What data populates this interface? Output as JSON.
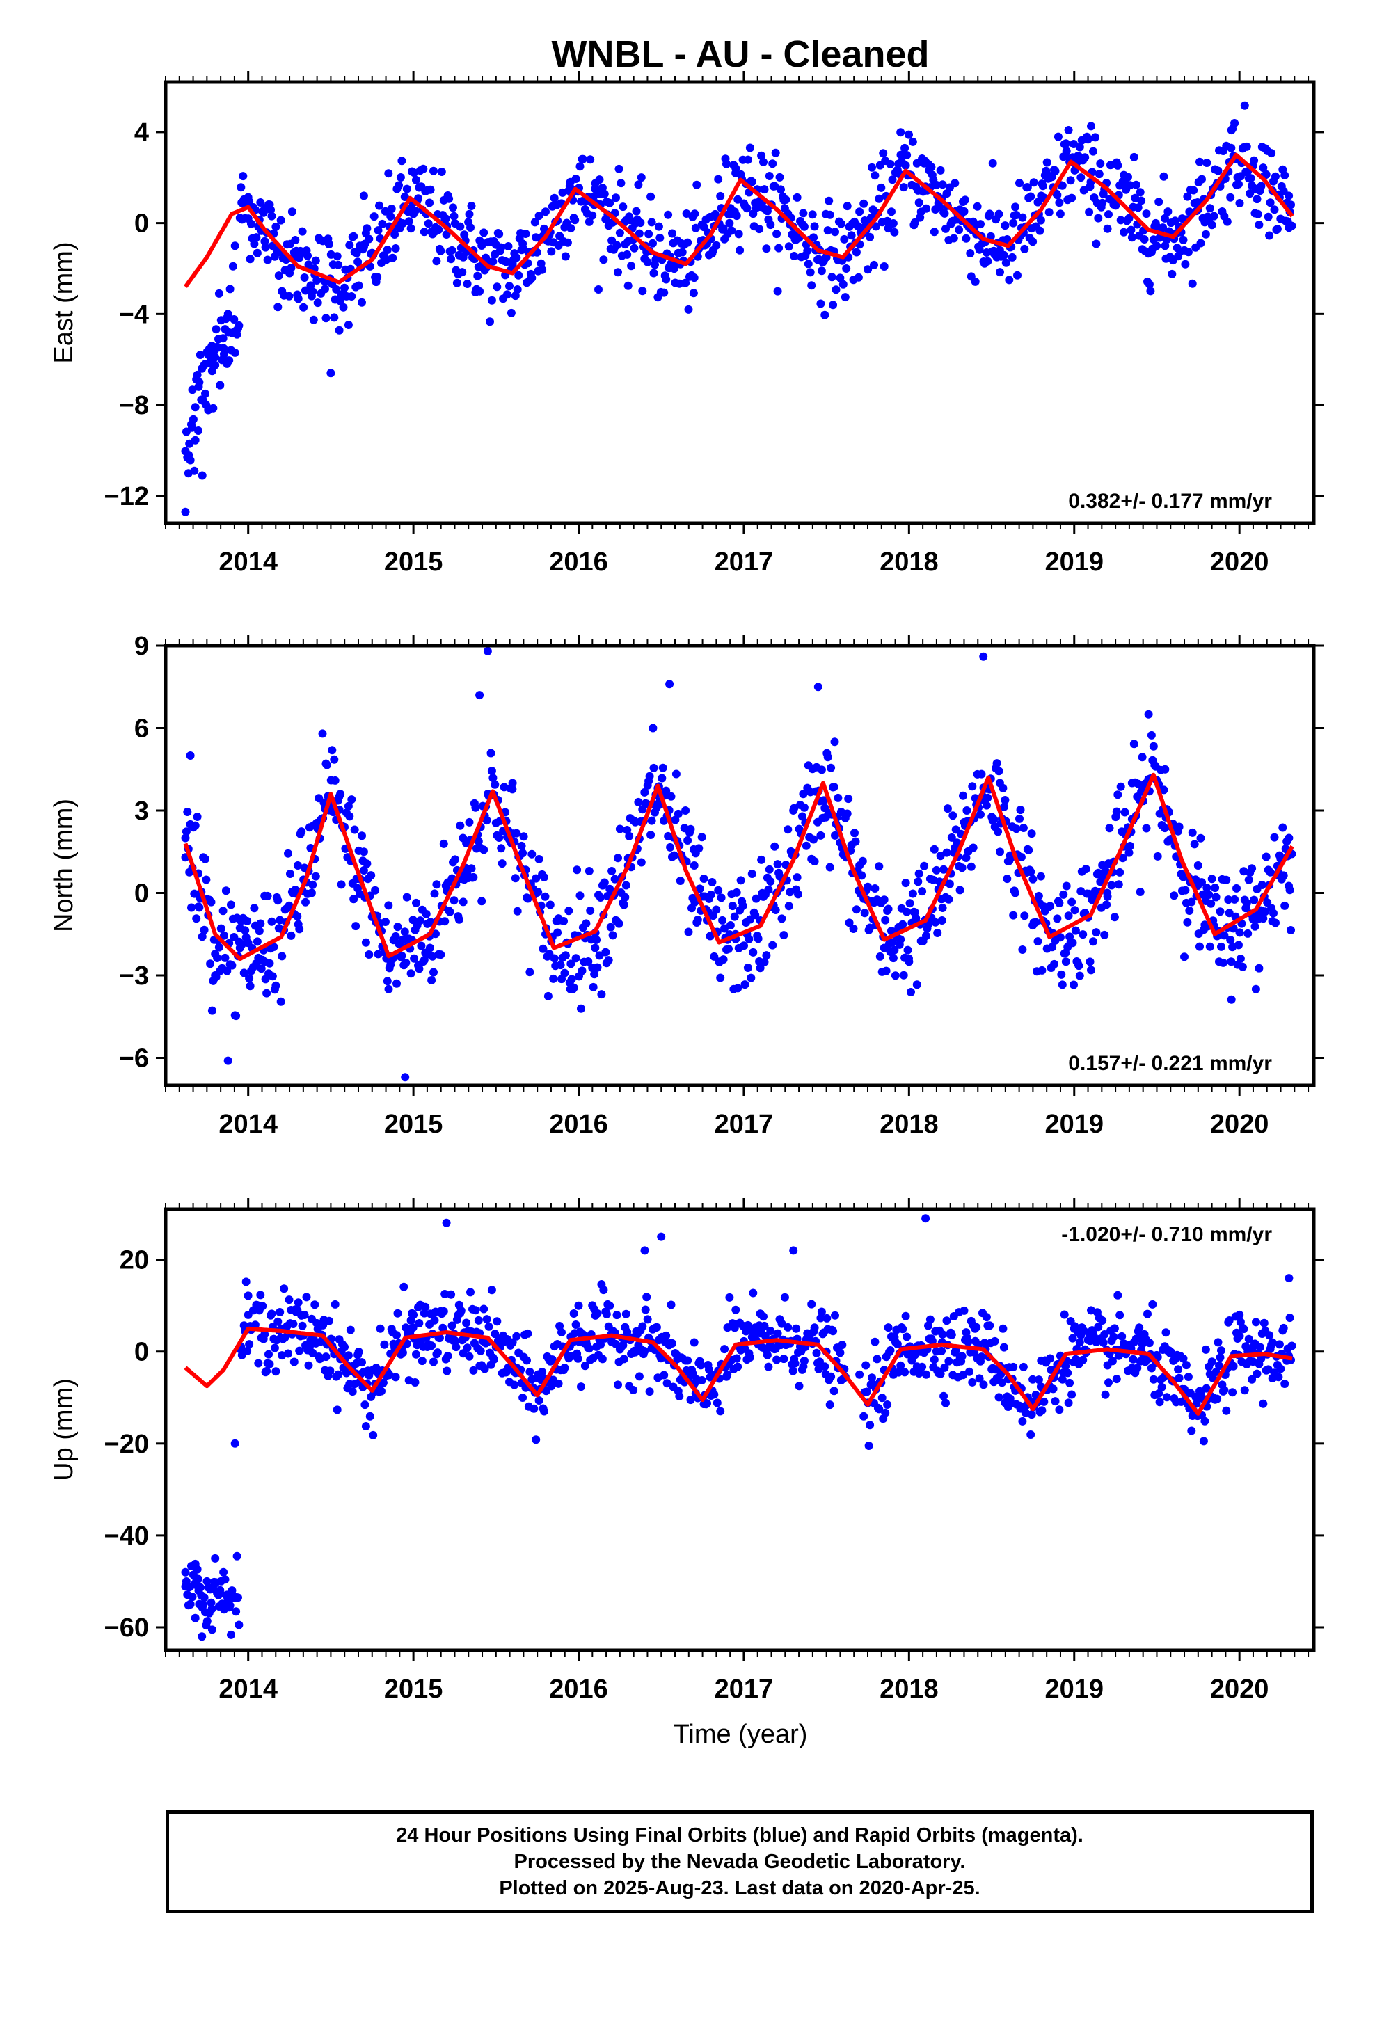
{
  "figure": {
    "title": "WNBL  - AU - Cleaned",
    "xlabel": "Time (year)",
    "footer": [
      "24 Hour Positions Using Final Orbits (blue) and Rapid Orbits (magenta).",
      "Processed by the Nevada Geodetic Laboratory.",
      "Plotted on 2025-Aug-23. Last data on 2020-Apr-25."
    ]
  },
  "colors": {
    "points": "#0000ff",
    "model": "#ff0000",
    "axes": "#000000"
  },
  "chart_data": [
    {
      "type": "scatter",
      "component": "east",
      "ylabel": "East (mm)",
      "rate_text": "0.382+/- 0.177 mm/yr",
      "rate_position": "bottom-right",
      "xlim": [
        2013.5,
        2020.45
      ],
      "ylim": [
        -13.2,
        6.2
      ],
      "yticks": [
        4,
        0,
        -4,
        -8,
        -12
      ],
      "xticks": [
        2014,
        2015,
        2016,
        2017,
        2018,
        2019,
        2020
      ],
      "grid": false,
      "series": [
        {
          "type": "scatter",
          "x": [
            2013.62,
            2013.64,
            2013.66,
            2013.68,
            2013.7,
            2013.72,
            2013.74,
            2013.76,
            2013.78,
            2013.8,
            2013.82,
            2013.85,
            2013.88,
            2013.92,
            2013.96,
            2014.0,
            2014.1,
            2014.25,
            2014.4,
            2014.5,
            2014.7,
            2014.9,
            2015.0,
            2015.2,
            2015.4,
            2015.6,
            2015.8,
            2015.95,
            2016.1,
            2016.3,
            2016.55,
            2016.7,
            2016.95,
            2017.1,
            2017.3,
            2017.5,
            2017.7,
            2017.95,
            2018.1,
            2018.3,
            2018.55,
            2018.8,
            2018.95,
            2019.1,
            2019.3,
            2019.55,
            2019.75,
            2019.95,
            2020.1,
            2020.3
          ],
          "y": [
            -12.7,
            -10.2,
            -9.0,
            -8.1,
            -7.2,
            -6.4,
            -6.2,
            -5.8,
            -5.4,
            -5.9,
            -5.1,
            -5.5,
            -4.8,
            -1.0,
            0.9,
            0.2,
            -0.8,
            -2.2,
            -2.0,
            -6.6,
            1.2,
            1.5,
            0.4,
            -0.5,
            -3.0,
            -1.8,
            0.5,
            1.8,
            1.5,
            -0.8,
            -1.9,
            -2.4,
            2.2,
            1.0,
            -0.5,
            -1.5,
            0.5,
            3.0,
            1.6,
            0.2,
            -1.2,
            1.2,
            3.5,
            1.8,
            -0.4,
            -1.0,
            0.6,
            3.3,
            1.5,
            -0.2
          ]
        },
        {
          "type": "line",
          "name": "",
          "x": [
            2013.62,
            2013.75,
            2013.9,
            2014.0,
            2014.1,
            2014.3,
            2014.55,
            2014.75,
            2014.98,
            2015.2,
            2015.45,
            2015.6,
            2015.8,
            2015.98,
            2016.2,
            2016.45,
            2016.65,
            2016.8,
            2016.98,
            2017.2,
            2017.45,
            2017.6,
            2017.8,
            2017.98,
            2018.2,
            2018.45,
            2018.6,
            2018.8,
            2018.98,
            2019.2,
            2019.45,
            2019.6,
            2019.8,
            2019.98,
            2020.15,
            2020.32
          ],
          "y": [
            -2.8,
            -1.5,
            0.4,
            0.7,
            -0.3,
            -1.9,
            -2.6,
            -1.6,
            1.1,
            -0.2,
            -1.9,
            -2.2,
            -0.6,
            1.5,
            0.3,
            -1.3,
            -1.8,
            -0.5,
            1.9,
            0.6,
            -1.2,
            -1.5,
            0.2,
            2.3,
            1.0,
            -0.7,
            -1.0,
            0.6,
            2.7,
            1.5,
            -0.3,
            -0.6,
            1.0,
            3.0,
            1.9,
            0.3
          ]
        }
      ]
    },
    {
      "type": "scatter",
      "component": "north",
      "ylabel": "North (mm)",
      "rate_text": "0.157+/- 0.221 mm/yr",
      "rate_position": "bottom-right",
      "xlim": [
        2013.5,
        2020.45
      ],
      "ylim": [
        -7.0,
        9.0
      ],
      "yticks": [
        9,
        6,
        3,
        0,
        -3,
        -6
      ],
      "xticks": [
        2014,
        2015,
        2016,
        2017,
        2018,
        2019,
        2020
      ],
      "grid": false,
      "series": [
        {
          "type": "scatter",
          "x": [
            2013.62,
            2013.65,
            2013.7,
            2013.8,
            2013.95,
            2014.1,
            2014.3,
            2014.45,
            2014.55,
            2014.7,
            2014.85,
            2014.95,
            2015.1,
            2015.3,
            2015.4,
            2015.45,
            2015.6,
            2015.8,
            2015.95,
            2016.1,
            2016.3,
            2016.45,
            2016.55,
            2016.7,
            2016.85,
            2016.95,
            2017.1,
            2017.3,
            2017.45,
            2017.55,
            2017.7,
            2017.85,
            2018.0,
            2018.2,
            2018.35,
            2018.45,
            2018.55,
            2018.75,
            2018.95,
            2019.2,
            2019.35,
            2019.45,
            2019.55,
            2019.75,
            2019.95,
            2020.1,
            2020.3
          ],
          "y": [
            2.0,
            5.0,
            -0.5,
            -3.0,
            -2.0,
            -2.5,
            1.0,
            5.8,
            3.5,
            1.5,
            -3.5,
            -6.7,
            -2.0,
            2.0,
            7.2,
            8.8,
            4.0,
            -1.5,
            -3.5,
            -2.0,
            1.0,
            6.0,
            7.6,
            1.0,
            -2.5,
            -1.5,
            -1.0,
            3.0,
            7.5,
            5.5,
            1.0,
            -2.0,
            -2.5,
            -1.0,
            3.0,
            8.6,
            4.0,
            0.5,
            -2.5,
            0.0,
            4.0,
            6.5,
            4.5,
            1.0,
            -2.5,
            -3.5,
            2.0
          ]
        },
        {
          "type": "line",
          "name": "",
          "x": [
            2013.62,
            2013.8,
            2013.95,
            2014.2,
            2014.35,
            2014.5,
            2014.65,
            2014.85,
            2015.1,
            2015.3,
            2015.48,
            2015.65,
            2015.85,
            2016.1,
            2016.3,
            2016.48,
            2016.65,
            2016.85,
            2017.1,
            2017.3,
            2017.48,
            2017.65,
            2017.85,
            2018.1,
            2018.3,
            2018.48,
            2018.65,
            2018.85,
            2019.1,
            2019.3,
            2019.48,
            2019.65,
            2019.85,
            2020.1,
            2020.32
          ],
          "y": [
            1.8,
            -1.5,
            -2.4,
            -1.6,
            0.5,
            3.6,
            1.0,
            -2.3,
            -1.5,
            1.0,
            3.7,
            1.0,
            -2.0,
            -1.4,
            1.0,
            3.9,
            0.8,
            -1.8,
            -1.2,
            1.2,
            4.0,
            1.0,
            -1.7,
            -1.0,
            1.5,
            4.2,
            1.2,
            -1.6,
            -0.8,
            1.8,
            4.3,
            1.2,
            -1.5,
            -0.6,
            1.7
          ]
        }
      ]
    },
    {
      "type": "scatter",
      "component": "up",
      "ylabel": "Up (mm)",
      "rate_text": "-1.020+/- 0.710 mm/yr",
      "rate_position": "top-right",
      "xlim": [
        2013.5,
        2020.45
      ],
      "ylim": [
        -65,
        31
      ],
      "yticks": [
        20,
        0,
        -20,
        -40,
        -60
      ],
      "xticks": [
        2014,
        2015,
        2016,
        2017,
        2018,
        2019,
        2020
      ],
      "grid": false,
      "series": [
        {
          "type": "scatter",
          "x": [
            2013.62,
            2013.65,
            2013.68,
            2013.7,
            2013.72,
            2013.75,
            2013.78,
            2013.8,
            2013.82,
            2013.85,
            2013.88,
            2013.92,
            2014.0,
            2014.2,
            2014.4,
            2014.6,
            2014.8,
            2015.0,
            2015.2,
            2015.4,
            2015.6,
            2015.8,
            2016.0,
            2016.2,
            2016.4,
            2016.5,
            2016.7,
            2016.9,
            2017.1,
            2017.3,
            2017.5,
            2017.7,
            2017.9,
            2018.1,
            2018.2,
            2018.4,
            2018.6,
            2018.8,
            2019.0,
            2019.2,
            2019.4,
            2019.6,
            2019.8,
            2020.0,
            2020.2,
            2020.3
          ],
          "y": [
            -48,
            -55,
            -58,
            -52,
            -62,
            -50,
            -56,
            -45,
            -53,
            -48,
            -55,
            -20,
            8,
            5,
            2,
            -3,
            5,
            8,
            28,
            4,
            2,
            -6,
            10,
            3,
            22,
            25,
            2,
            -5,
            4,
            22,
            0,
            -5,
            3,
            29,
            2,
            5,
            -12,
            -2,
            5,
            0,
            3,
            -2,
            -8,
            8,
            2,
            16
          ]
        },
        {
          "type": "line",
          "name": "",
          "x": [
            2013.62,
            2013.75,
            2013.85,
            2014.0,
            2014.2,
            2014.45,
            2014.6,
            2014.75,
            2014.95,
            2015.2,
            2015.45,
            2015.6,
            2015.75,
            2015.95,
            2016.2,
            2016.45,
            2016.6,
            2016.75,
            2016.95,
            2017.2,
            2017.45,
            2017.6,
            2017.75,
            2017.95,
            2018.2,
            2018.45,
            2018.6,
            2018.75,
            2018.95,
            2019.2,
            2019.45,
            2019.6,
            2019.75,
            2019.95,
            2020.15,
            2020.32
          ],
          "y": [
            -3.5,
            -7.5,
            -4.0,
            5.0,
            4.5,
            3.5,
            -3.0,
            -8.5,
            3.0,
            4.2,
            3.0,
            -3.0,
            -9.5,
            2.5,
            3.5,
            2.0,
            -3.5,
            -10.5,
            1.5,
            2.5,
            1.5,
            -4.5,
            -11.5,
            0.5,
            1.5,
            0.5,
            -5.0,
            -12.5,
            -0.5,
            0.5,
            -0.5,
            -6.5,
            -13.5,
            -1.0,
            -0.5,
            -1.5
          ]
        }
      ]
    }
  ]
}
